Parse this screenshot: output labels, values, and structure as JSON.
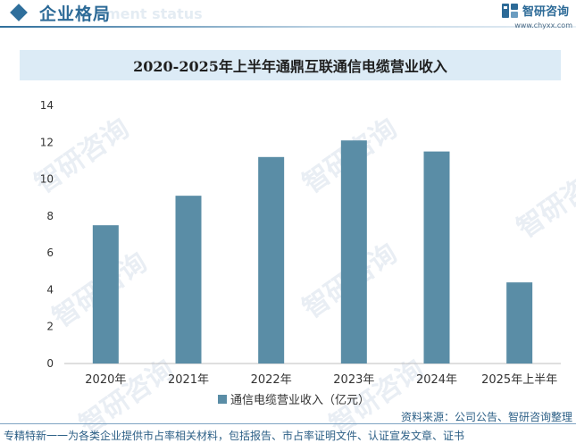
{
  "header": {
    "section_title": "企业格局",
    "section_subtitle": "ment status"
  },
  "brand": {
    "name": "智研咨询",
    "url": "www.chyxx.com"
  },
  "watermark_text": "智研咨询",
  "colors": {
    "bar": "#5a8da6",
    "accent": "#2c6a97",
    "title_bg": "#dcebf6"
  },
  "chart_data": {
    "type": "bar",
    "title": "2020-2025年上半年通鼎互联通信电缆营业收入",
    "categories": [
      "2020年",
      "2021年",
      "2022年",
      "2023年",
      "2024年",
      "2025年上半年"
    ],
    "series": [
      {
        "name": "通信电缆营业收入（亿元）",
        "values": [
          7.5,
          9.1,
          11.2,
          12.1,
          11.5,
          4.4
        ]
      }
    ],
    "xlabel": "",
    "ylabel": "",
    "ylim": [
      0,
      14
    ],
    "yticks": [
      0,
      2,
      4,
      6,
      8,
      10,
      12,
      14
    ],
    "grid": false,
    "legend": "bottom"
  },
  "source": "资料来源：公司公告、智研咨询整理",
  "footer": "专精特新一一为各类企业提供市占率相关材料，包括报告、市占率证明文件、认证宣发文章、证书"
}
